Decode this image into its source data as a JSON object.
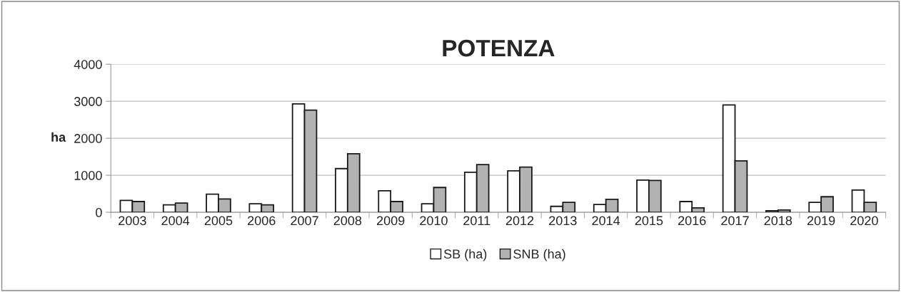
{
  "chart_data": {
    "type": "bar",
    "title": "POTENZA",
    "ylabel": "ha",
    "categories": [
      "2003",
      "2004",
      "2005",
      "2006",
      "2007",
      "2008",
      "2009",
      "2010",
      "2011",
      "2012",
      "2013",
      "2014",
      "2015",
      "2016",
      "2017",
      "2018",
      "2019",
      "2020"
    ],
    "series": [
      {
        "name": "SB (ha)",
        "color": "#ffffff",
        "values": [
          320,
          200,
          490,
          230,
          2930,
          1180,
          580,
          230,
          1080,
          1120,
          160,
          210,
          870,
          290,
          2900,
          40,
          270,
          600
        ]
      },
      {
        "name": "SNB (ha)",
        "color": "#b2b2b2",
        "values": [
          290,
          250,
          360,
          200,
          2760,
          1580,
          290,
          670,
          1290,
          1220,
          270,
          350,
          860,
          120,
          1390,
          60,
          420,
          270
        ]
      }
    ],
    "ylim": [
      0,
      4000
    ],
    "yticks": [
      0,
      1000,
      2000,
      3000,
      4000
    ],
    "grid": "y",
    "legend": "bottom"
  }
}
